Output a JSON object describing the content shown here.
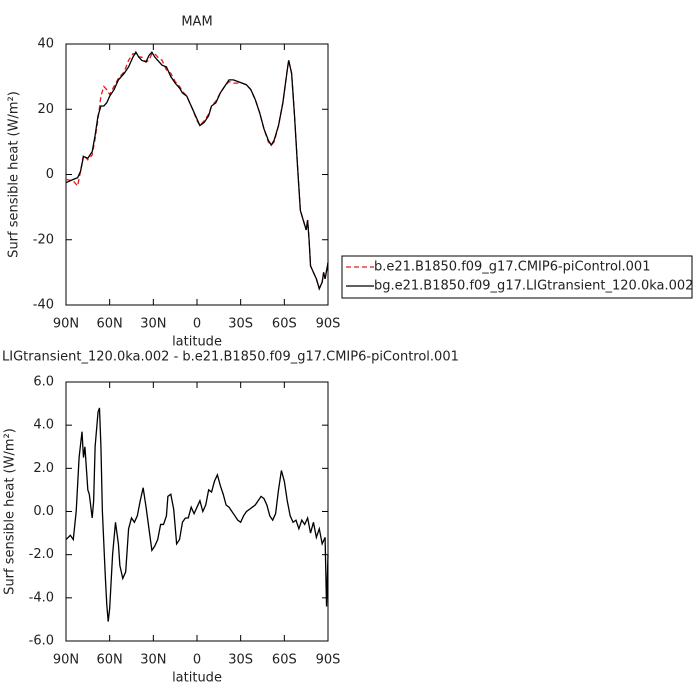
{
  "chart_data": [
    {
      "type": "line",
      "title": "MAM",
      "xlabel": "latitude",
      "ylabel": "Surf sensible heat (W/m²)",
      "x": [
        90,
        85,
        82,
        80,
        78,
        75,
        72,
        70,
        68,
        66,
        64,
        62,
        60,
        57,
        54,
        50,
        47,
        44,
        42,
        40,
        38,
        35,
        33,
        31,
        29,
        27,
        24,
        21,
        18,
        15,
        12,
        10,
        7,
        5,
        3,
        0,
        -2,
        -5,
        -8,
        -10,
        -13,
        -16,
        -19,
        -22,
        -25,
        -28,
        -31,
        -34,
        -37,
        -40,
        -43,
        -46,
        -49,
        -51,
        -53,
        -56,
        -59,
        -62,
        -63,
        -65,
        -67,
        -69,
        -71,
        -73,
        -75,
        -76,
        -77,
        -78,
        -80,
        -82,
        -84,
        -85,
        -86,
        -87,
        -88,
        -90
      ],
      "xlim": [
        90,
        -90
      ],
      "xticks": [
        {
          "value": 90,
          "label": "90N"
        },
        {
          "value": 60,
          "label": "60N"
        },
        {
          "value": 30,
          "label": "30N"
        },
        0,
        {
          "value": -30,
          "label": "30S"
        },
        {
          "value": -60,
          "label": "60S"
        },
        {
          "value": -90,
          "label": "90S"
        }
      ],
      "ylim": [
        -40,
        40
      ],
      "yticks": [
        -40,
        -20,
        0,
        20,
        40
      ],
      "legend": "right",
      "series": [
        {
          "name": "b.e21.B1850.f09_g17.CMIP6-piControl.001",
          "color": "#e41a1c",
          "line_style": "dashed",
          "values": [
            -1.5,
            -2,
            -3.5,
            1,
            6,
            4.5,
            6,
            11,
            17,
            24,
            27,
            26,
            24.5,
            27,
            29.5,
            31.5,
            35,
            37,
            37,
            36,
            36,
            34.5,
            35,
            37,
            37,
            36,
            35,
            32,
            31,
            28.5,
            27,
            25.5,
            24,
            22,
            20,
            16.5,
            15,
            16.5,
            18.5,
            21,
            22.5,
            25,
            27,
            28.5,
            28,
            28,
            28,
            27.5,
            26,
            23,
            19,
            14,
            10,
            9,
            10,
            15,
            22,
            32,
            35,
            31,
            18,
            3,
            -11,
            -14,
            -17,
            -14,
            -20,
            -28,
            -30,
            -32,
            -35,
            -34,
            -33,
            -30,
            -32,
            -27
          ]
        },
        {
          "name": "bg.e21.B1850.f09_g17.LIGtransient_120.0ka.002",
          "color": "#000000",
          "line_style": "solid",
          "values": [
            -2.5,
            -1.5,
            -1,
            1,
            5.5,
            5,
            7,
            12,
            18,
            21,
            21,
            22,
            24,
            26,
            29,
            31,
            33,
            36,
            37.5,
            36,
            35,
            34.5,
            36.5,
            37.5,
            36,
            35,
            33.5,
            33,
            30,
            28,
            26.5,
            25,
            24,
            22,
            20,
            17,
            15,
            16,
            18,
            21,
            22,
            25,
            27,
            29,
            29,
            28.5,
            28,
            27.5,
            26,
            23,
            19,
            14,
            10.5,
            9,
            10.5,
            15,
            22,
            32,
            35,
            31,
            18,
            3,
            -11,
            -14,
            -17,
            -14,
            -20,
            -28,
            -30,
            -32,
            -35,
            -34,
            -33,
            -30,
            -32,
            -27
          ]
        }
      ]
    },
    {
      "type": "line",
      "title": "LIGtransient_120.0ka.002 - b.e21.B1850.f09_g17.CMIP6-piControl.001",
      "xlabel": "latitude",
      "ylabel": "Surf sensible heat (W/m²)",
      "x": [
        90,
        87,
        85,
        83,
        81,
        79,
        78,
        77,
        76,
        75,
        74,
        72,
        71,
        70,
        68,
        67,
        66,
        65,
        64,
        63,
        62,
        61,
        60,
        58,
        56,
        54,
        53,
        51,
        49,
        47,
        45,
        43,
        41,
        39,
        37,
        35,
        33,
        31,
        29,
        27,
        25,
        23,
        21,
        20,
        18,
        16,
        14,
        12,
        10,
        8,
        6,
        4,
        2,
        0,
        -2,
        -4,
        -6,
        -8,
        -10,
        -12,
        -14,
        -16,
        -18,
        -20,
        -22,
        -24,
        -26,
        -28,
        -30,
        -32,
        -34,
        -36,
        -38,
        -40,
        -42,
        -44,
        -46,
        -48,
        -50,
        -52,
        -54,
        -56,
        -58,
        -60,
        -62,
        -64,
        -66,
        -68,
        -70,
        -72,
        -74,
        -76,
        -78,
        -80,
        -82,
        -84,
        -86,
        -88,
        -89,
        -90
      ],
      "xlim": [
        90,
        -90
      ],
      "xticks": [
        {
          "value": 90,
          "label": "90N"
        },
        {
          "value": 60,
          "label": "60N"
        },
        {
          "value": 30,
          "label": "30N"
        },
        0,
        {
          "value": -30,
          "label": "30S"
        },
        {
          "value": -60,
          "label": "60S"
        },
        {
          "value": -90,
          "label": "90S"
        }
      ],
      "ylim": [
        -6,
        6
      ],
      "yticks": [
        {
          "value": -6,
          "label": "-6.0"
        },
        {
          "value": -4,
          "label": "-4.0"
        },
        {
          "value": -2,
          "label": "-2.0"
        },
        {
          "value": 0,
          "label": "0.0"
        },
        {
          "value": 2,
          "label": "2.0"
        },
        {
          "value": 4,
          "label": "4.0"
        },
        {
          "value": 6,
          "label": "6.0"
        }
      ],
      "series": [
        {
          "color": "#000000",
          "line_style": "solid",
          "values": [
            -1.3,
            -1.1,
            -1.3,
            0,
            2.5,
            3.7,
            2.5,
            3,
            2,
            1,
            0.8,
            -0.3,
            0.5,
            3,
            4.6,
            4.8,
            3,
            0,
            -1.5,
            -3,
            -4.3,
            -5.1,
            -4.5,
            -2,
            -0.5,
            -1.5,
            -2.5,
            -3.1,
            -2.8,
            -0.8,
            -0.3,
            -0.5,
            -0.2,
            0.5,
            1.1,
            0.2,
            -0.8,
            -1.8,
            -1.6,
            -1.3,
            -0.6,
            -0.6,
            -0.2,
            0.7,
            0.8,
            0.1,
            -1.5,
            -1.3,
            -0.5,
            -0.3,
            -0.3,
            0.2,
            -0.1,
            0.2,
            0.5,
            0,
            0.3,
            1,
            0.9,
            1.4,
            1.7,
            1.2,
            0.8,
            0.3,
            0.2,
            0,
            -0.2,
            -0.4,
            -0.5,
            -0.2,
            0,
            0.1,
            0.2,
            0.3,
            0.5,
            0.7,
            0.6,
            0.3,
            -0.2,
            -0.4,
            -0.1,
            1,
            1.9,
            1.4,
            0.5,
            -0.2,
            -0.5,
            -0.4,
            -0.8,
            -0.4,
            -0.6,
            -0.3,
            -1,
            -0.5,
            -1.2,
            -0.8,
            -1.5,
            -1.2,
            -4.4,
            -2
          ]
        }
      ]
    }
  ]
}
